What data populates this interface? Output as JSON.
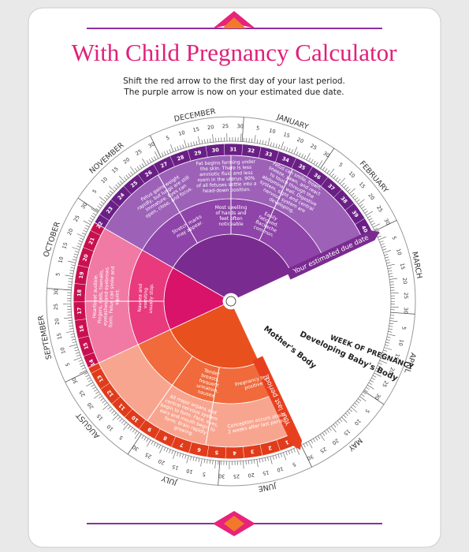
{
  "header": {
    "title": "With Child Pregnancy Calculator",
    "instructions": [
      "Shift the red arrow to the first day of your last period.",
      "The purple arrow is now on your estimated due date."
    ]
  },
  "wheel": {
    "months": [
      "DECEMBER",
      "JANUARY",
      "FEBRUARY",
      "MARCH",
      "APRIL",
      "MAY",
      "JUNE",
      "JULY",
      "AUGUST",
      "SEPTEMBER",
      "OCTOBER",
      "NOVEMBER"
    ],
    "day_marks": [
      5,
      10,
      15,
      20,
      25,
      30
    ],
    "weeks": [
      1,
      2,
      3,
      4,
      5,
      6,
      7,
      8,
      9,
      10,
      11,
      12,
      13,
      14,
      15,
      16,
      17,
      18,
      19,
      20,
      21,
      22,
      23,
      24,
      25,
      26,
      27,
      28,
      29,
      30,
      31,
      32,
      33,
      34,
      35,
      36,
      37,
      38,
      39,
      40
    ],
    "week_label": "WEEK OF PREGNANCY",
    "baby_label": "Developing Baby's Body",
    "mother_label": "Mother's Body",
    "due_arrow": "Your estimated due date",
    "period_arrow": "Your last period",
    "notes": [
      "Fat begins forming under the skin. There is less amniotic fluid and less room in the uterus. 90% of all fetuses settle into a head-down position.",
      "Fetus can smile, frown, sneeze, yawn, and react to touch through the abdominal wall. Digestive system, sight and central nervous system are developing.",
      "Fetus gains weight rapidly, but lungs are still immature. Eyes can open, close, and focus.",
      "Most swelling of hands and feet often noticeable",
      "Easily fatigued. Backache common.",
      "Stretch marks may appear.",
      "Heartbeat audible. Fingers, nails, toenails, eyelashes and eyebrows form. Fetus can smile and squint.",
      "Nausea and vomiting usually stop.",
      "Conception occurs about 2 weeks after last period.",
      "All major organs and central nervous system begin to form. Face, eyes, ears and mouth begin to form. Brain rapidly growing.",
      "Pregnancy test positive",
      "Tender breasts, frequent urination, nausea"
    ]
  }
}
